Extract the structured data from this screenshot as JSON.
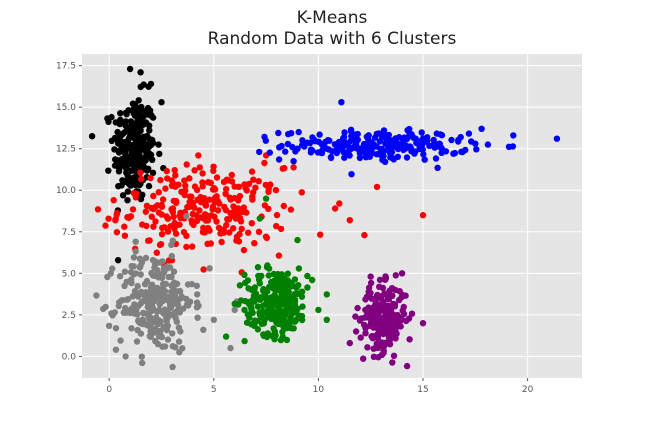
{
  "chart_data": {
    "type": "scatter",
    "title": "K-Means",
    "subtitle": "Random Data with 6 Clusters",
    "xlabel": "",
    "ylabel": "",
    "xlim": [
      -1.3,
      22.6
    ],
    "ylim": [
      -1.3,
      18.2
    ],
    "xticks": [
      0,
      5,
      10,
      15,
      20
    ],
    "yticks": [
      0.0,
      2.5,
      5.0,
      7.5,
      10.0,
      12.5,
      15.0,
      17.5
    ],
    "xtick_labels": [
      "0",
      "5",
      "10",
      "15",
      "20"
    ],
    "ytick_labels": [
      "0.0",
      "2.5",
      "5.0",
      "7.5",
      "10.0",
      "12.5",
      "15.0",
      "17.5"
    ],
    "grid": true,
    "style": "ggplot",
    "background_color": "#e5e5e5",
    "grid_color": "#ffffff",
    "series": [
      {
        "color": "#000000",
        "cluster": {
          "cx": 1.2,
          "cy": 12.5,
          "sx": 0.5,
          "sy": 1.6,
          "n": 260
        },
        "outliers": [
          [
            1.0,
            17.3
          ],
          [
            0.4,
            13.5
          ],
          [
            1.5,
            17.1
          ],
          [
            2.0,
            16.4
          ],
          [
            2.5,
            15.3
          ]
        ]
      },
      {
        "color": "#ff0000",
        "cluster": {
          "cx": 4.5,
          "cy": 8.8,
          "sx": 2.0,
          "sy": 1.3,
          "n": 260
        },
        "outliers": [
          [
            15.0,
            8.5
          ],
          [
            12.8,
            10.2
          ],
          [
            12.2,
            7.3
          ],
          [
            11.5,
            8.2
          ],
          [
            11.0,
            9.2
          ],
          [
            10.8,
            8.9
          ],
          [
            8.3,
            11.3
          ],
          [
            7.5,
            12.1
          ]
        ]
      },
      {
        "color": "#0000ff",
        "cluster": {
          "cx": 12.7,
          "cy": 12.7,
          "sx": 2.2,
          "sy": 0.45,
          "n": 230
        },
        "outliers": [
          [
            21.4,
            13.1
          ],
          [
            17.8,
            13.7
          ],
          [
            17.5,
            12.8
          ],
          [
            11.1,
            15.3
          ],
          [
            16.8,
            13.2
          ],
          [
            9.0,
            12.5
          ]
        ]
      },
      {
        "color": "#808080",
        "cluster": {
          "cx": 2.2,
          "cy": 3.3,
          "sx": 0.9,
          "sy": 1.5,
          "n": 260
        },
        "outliers": [
          [
            5.8,
            0.5
          ],
          [
            6.1,
            3.3
          ],
          [
            5.0,
            2.2
          ],
          [
            4.8,
            5.3
          ],
          [
            6.0,
            2.8
          ],
          [
            4.5,
            1.6
          ]
        ]
      },
      {
        "color": "#008000",
        "cluster": {
          "cx": 8.0,
          "cy": 3.3,
          "sx": 0.75,
          "sy": 1.0,
          "n": 260
        },
        "outliers": [
          [
            7.5,
            9.5
          ],
          [
            7.2,
            8.3
          ],
          [
            9.0,
            7.0
          ],
          [
            10.0,
            2.8
          ],
          [
            10.4,
            2.2
          ],
          [
            9.7,
            4.6
          ]
        ]
      },
      {
        "color": "#800080",
        "cluster": {
          "cx": 13.1,
          "cy": 2.3,
          "sx": 0.55,
          "sy": 1.0,
          "n": 220
        },
        "outliers": [
          [
            15.0,
            2.0
          ],
          [
            11.8,
            1.5
          ],
          [
            12.5,
            4.8
          ],
          [
            11.5,
            0.8
          ],
          [
            14.0,
            5.0
          ]
        ]
      }
    ]
  }
}
